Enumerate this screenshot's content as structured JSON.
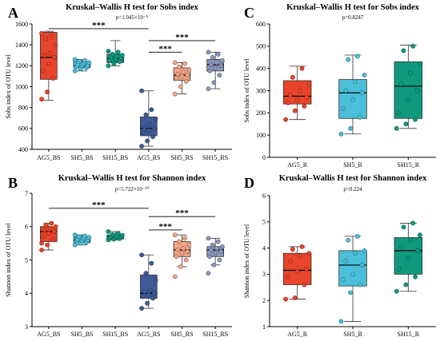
{
  "colors": {
    "AG": "#e8452b",
    "SH5": "#4bbfd9",
    "SH15": "#0f9a7e",
    "AG_RS": "#3f5a99",
    "SH5_RS": "#f2a487",
    "SH15_RS": "#8c98bd"
  },
  "chart_data": [
    {
      "panel": "A",
      "type": "box",
      "title": "Kruskal–Wallis H test for Sobs index",
      "subtitle": "p=1.045×10⁻⁵",
      "ylabel": "Sobs index of OTU level",
      "ylim": [
        400,
        1600
      ],
      "yticks": [
        "400",
        "600",
        "800",
        "1000",
        "1200",
        "1400",
        "1600"
      ],
      "grid": false,
      "categories": [
        "AG5_BS",
        "SH5_BS",
        "SH15_BS",
        "AG5_RS",
        "SH5_RS",
        "SH15_RS"
      ],
      "colors": [
        "#e8452b",
        "#4bbfd9",
        "#0f9a7e",
        "#3f5a99",
        "#f2a487",
        "#8c98bd"
      ],
      "boxes": [
        {
          "min": 870,
          "q1": 1070,
          "median": 1280,
          "q3": 1520,
          "max": 1530
        },
        {
          "min": 1150,
          "q1": 1180,
          "median": 1200,
          "q3": 1240,
          "max": 1260
        },
        {
          "min": 1200,
          "q1": 1230,
          "median": 1270,
          "q3": 1310,
          "max": 1440
        },
        {
          "min": 430,
          "q1": 530,
          "median": 600,
          "q3": 710,
          "max": 960
        },
        {
          "min": 930,
          "q1": 1060,
          "median": 1110,
          "q3": 1180,
          "max": 1230
        },
        {
          "min": 980,
          "q1": 1150,
          "median": 1210,
          "q3": 1260,
          "max": 1330
        }
      ],
      "points": [
        [
          880,
          950,
          1080,
          1150,
          1220,
          1280,
          1300,
          1320,
          1400,
          1460,
          1490,
          1510
        ],
        [
          1150,
          1170,
          1180,
          1190,
          1200,
          1200,
          1210,
          1220,
          1230,
          1240,
          1250,
          1260
        ],
        [
          1200,
          1220,
          1240,
          1250,
          1260,
          1270,
          1280,
          1290,
          1300,
          1310,
          1330,
          1340
        ],
        [
          430,
          480,
          520,
          560,
          580,
          600,
          610,
          640,
          690,
          730,
          780,
          960
        ],
        [
          930,
          1000,
          1050,
          1080,
          1100,
          1110,
          1120,
          1140,
          1160,
          1190,
          1220,
          1230
        ],
        [
          980,
          1040,
          1110,
          1150,
          1180,
          1200,
          1210,
          1230,
          1250,
          1280,
          1310,
          1330
        ]
      ],
      "significance": [
        {
          "from": 0,
          "to": 3,
          "label": "***",
          "y": 1555
        },
        {
          "from": 3,
          "to": 5,
          "label": "***",
          "y": 1440
        },
        {
          "from": 3,
          "to": 4,
          "label": "***",
          "y": 1330
        }
      ]
    },
    {
      "panel": "B",
      "type": "box",
      "title": "Kruskal–Wallis H test for Shannon index",
      "subtitle": "p=5.722×10⁻¹⁰",
      "ylabel": "Shannon index of OTU level",
      "ylim": [
        3,
        7
      ],
      "yticks": [
        "3",
        "4",
        "5",
        "6",
        "7"
      ],
      "grid": false,
      "categories": [
        "AG5_BS",
        "SH5_BS",
        "SH15_BS",
        "AG5_RS",
        "SH5_RS",
        "SH15_RS"
      ],
      "colors": [
        "#e8452b",
        "#4bbfd9",
        "#0f9a7e",
        "#3f5a99",
        "#f2a487",
        "#8c98bd"
      ],
      "boxes": [
        {
          "min": 5.3,
          "q1": 5.55,
          "median": 5.85,
          "q3": 6.0,
          "max": 6.1
        },
        {
          "min": 5.45,
          "q1": 5.52,
          "median": 5.6,
          "q3": 5.68,
          "max": 5.75
        },
        {
          "min": 5.6,
          "q1": 5.63,
          "median": 5.7,
          "q3": 5.75,
          "max": 5.85
        },
        {
          "min": 3.55,
          "q1": 3.85,
          "median": 4.0,
          "q3": 4.55,
          "max": 5.15
        },
        {
          "min": 4.8,
          "q1": 5.1,
          "median": 5.3,
          "q3": 5.55,
          "max": 5.75
        },
        {
          "min": 4.85,
          "q1": 5.1,
          "median": 5.3,
          "q3": 5.4,
          "max": 5.65
        }
      ],
      "points": [
        [
          5.3,
          5.45,
          5.6,
          5.7,
          5.8,
          5.85,
          5.9,
          5.95,
          6.0,
          6.05,
          6.1,
          5.5
        ],
        [
          5.45,
          5.5,
          5.52,
          5.55,
          5.58,
          5.6,
          5.62,
          5.65,
          5.68,
          5.7,
          5.72,
          5.75
        ],
        [
          5.6,
          5.62,
          5.64,
          5.66,
          5.68,
          5.7,
          5.71,
          5.72,
          5.74,
          5.76,
          5.8,
          5.85
        ],
        [
          3.55,
          3.7,
          3.85,
          3.9,
          3.95,
          4.0,
          4.05,
          4.1,
          4.4,
          4.6,
          4.9,
          5.15
        ],
        [
          4.5,
          4.8,
          5.0,
          5.1,
          5.2,
          5.25,
          5.3,
          5.35,
          5.45,
          5.55,
          5.65,
          5.75
        ],
        [
          4.6,
          4.85,
          5.0,
          5.1,
          5.2,
          5.25,
          5.3,
          5.35,
          5.4,
          5.45,
          5.55,
          5.65
        ]
      ],
      "significance": [
        {
          "from": 0,
          "to": 3,
          "label": "***",
          "y": 6.55
        },
        {
          "from": 3,
          "to": 5,
          "label": "***",
          "y": 6.3
        },
        {
          "from": 3,
          "to": 4,
          "label": "***",
          "y": 5.9
        }
      ]
    },
    {
      "panel": "C",
      "type": "box",
      "title": "Kruskal–Wallis H test for Sobs index",
      "subtitle": "p=0.8247",
      "ylabel": "Sobs index of OTU level",
      "ylim": [
        0,
        600
      ],
      "yticks": [
        "0",
        "100",
        "200",
        "300",
        "400",
        "500",
        "600"
      ],
      "grid": false,
      "categories": [
        "AG5_R",
        "SH5_R",
        "SH15_R"
      ],
      "colors": [
        "#e8452b",
        "#4bbfd9",
        "#0f9a7e"
      ],
      "boxes": [
        {
          "min": 170,
          "q1": 240,
          "median": 275,
          "q3": 345,
          "max": 410
        },
        {
          "min": 105,
          "q1": 175,
          "median": 290,
          "q3": 350,
          "max": 460
        },
        {
          "min": 130,
          "q1": 175,
          "median": 320,
          "q3": 430,
          "max": 505
        }
      ],
      "points": [
        [
          170,
          210,
          230,
          245,
          260,
          270,
          280,
          300,
          330,
          360,
          400
        ],
        [
          105,
          130,
          180,
          220,
          260,
          290,
          300,
          340,
          370,
          440,
          455
        ],
        [
          130,
          150,
          170,
          200,
          260,
          300,
          330,
          380,
          420,
          480,
          500
        ]
      ],
      "significance": []
    },
    {
      "panel": "D",
      "type": "box",
      "title": "Kruskal–Wallis H test for Shannon index",
      "subtitle": "p=0.224",
      "ylabel": "Shannon index of OTU level",
      "ylim": [
        1,
        6
      ],
      "yticks": [
        "1",
        "2",
        "3",
        "4",
        "5",
        "6"
      ],
      "grid": false,
      "categories": [
        "AG5_R",
        "SH5_R",
        "SH15_R"
      ],
      "colors": [
        "#e8452b",
        "#4bbfd9",
        "#0f9a7e"
      ],
      "boxes": [
        {
          "min": 2.05,
          "q1": 2.6,
          "median": 3.15,
          "q3": 3.8,
          "max": 4.05
        },
        {
          "min": 1.2,
          "q1": 2.55,
          "median": 3.35,
          "q3": 3.9,
          "max": 4.45
        },
        {
          "min": 2.35,
          "q1": 3.0,
          "median": 3.9,
          "q3": 4.4,
          "max": 4.95
        }
      ],
      "points": [
        [
          2.05,
          2.1,
          2.6,
          2.9,
          3.1,
          3.2,
          3.5,
          3.7,
          3.8,
          3.95,
          4.05
        ],
        [
          1.2,
          2.3,
          2.6,
          2.8,
          3.0,
          3.35,
          3.5,
          3.8,
          3.9,
          4.3,
          4.45
        ],
        [
          2.35,
          2.6,
          2.9,
          3.2,
          3.6,
          3.9,
          4.0,
          4.3,
          4.5,
          4.8,
          4.95
        ]
      ],
      "significance": []
    }
  ]
}
